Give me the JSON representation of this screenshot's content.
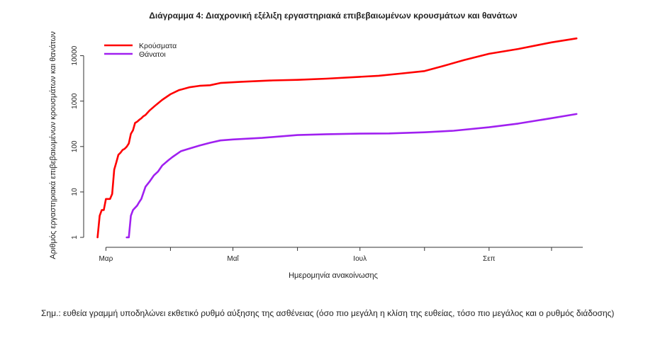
{
  "chart_data": {
    "type": "line",
    "title": "Διάγραμμα 4: Διαχρονική εξέλιξη εργαστηριακά επιβεβαιωμένων κρουσμάτων και θανάτων",
    "xlabel": "Ημερομηνία ανακοίνωσης",
    "ylabel": "Αριθμός εργαστηριακά επιβεβαιωμένων κρουσμάτων και θανάτων",
    "y_scale": "log",
    "ylim": [
      1,
      30000
    ],
    "y_ticks": [
      1,
      10,
      100,
      1000,
      10000
    ],
    "y_tick_labels": [
      "1",
      "10",
      "100",
      "1000",
      "10000"
    ],
    "xlim": [
      "2020-02-20",
      "2020-10-16"
    ],
    "x_ticks": [
      "2020-03-01",
      "2020-05-01",
      "2020-07-01",
      "2020-09-01"
    ],
    "x_tick_labels": [
      "Μαρ",
      "Μαΐ",
      "Ιουλ",
      "Σεπ"
    ],
    "grid": false,
    "legend_position": "top-left",
    "series": [
      {
        "name": "Κρούσματα",
        "color": "#ff0000",
        "points": [
          [
            "2020-02-26",
            1
          ],
          [
            "2020-02-27",
            3
          ],
          [
            "2020-02-28",
            4
          ],
          [
            "2020-02-29",
            4
          ],
          [
            "2020-03-01",
            7
          ],
          [
            "2020-03-03",
            7
          ],
          [
            "2020-03-04",
            9
          ],
          [
            "2020-03-05",
            31
          ],
          [
            "2020-03-06",
            45
          ],
          [
            "2020-03-07",
            66
          ],
          [
            "2020-03-08",
            73
          ],
          [
            "2020-03-09",
            84
          ],
          [
            "2020-03-10",
            89
          ],
          [
            "2020-03-11",
            99
          ],
          [
            "2020-03-12",
            117
          ],
          [
            "2020-03-13",
            190
          ],
          [
            "2020-03-14",
            228
          ],
          [
            "2020-03-15",
            331
          ],
          [
            "2020-03-16",
            352
          ],
          [
            "2020-03-17",
            387
          ],
          [
            "2020-03-18",
            418
          ],
          [
            "2020-03-19",
            464
          ],
          [
            "2020-03-20",
            495
          ],
          [
            "2020-03-22",
            624
          ],
          [
            "2020-03-25",
            821
          ],
          [
            "2020-03-28",
            1061
          ],
          [
            "2020-04-01",
            1415
          ],
          [
            "2020-04-05",
            1735
          ],
          [
            "2020-04-10",
            2011
          ],
          [
            "2020-04-15",
            2170
          ],
          [
            "2020-04-20",
            2235
          ],
          [
            "2020-04-25",
            2506
          ],
          [
            "2020-05-05",
            2663
          ],
          [
            "2020-05-20",
            2850
          ],
          [
            "2020-06-01",
            2937
          ],
          [
            "2020-06-15",
            3121
          ],
          [
            "2020-07-01",
            3432
          ],
          [
            "2020-07-10",
            3622
          ],
          [
            "2020-07-20",
            4007
          ],
          [
            "2020-08-01",
            4587
          ],
          [
            "2020-08-10",
            5942
          ],
          [
            "2020-08-20",
            8000
          ],
          [
            "2020-09-01",
            10998
          ],
          [
            "2020-09-15",
            14041
          ],
          [
            "2020-10-01",
            19613
          ],
          [
            "2020-10-13",
            24000
          ]
        ]
      },
      {
        "name": "Θάνατοι",
        "color": "#a020f0",
        "points": [
          [
            "2020-03-11",
            1
          ],
          [
            "2020-03-12",
            1
          ],
          [
            "2020-03-13",
            3
          ],
          [
            "2020-03-14",
            4
          ],
          [
            "2020-03-16",
            5
          ],
          [
            "2020-03-17",
            6
          ],
          [
            "2020-03-18",
            7
          ],
          [
            "2020-03-20",
            13
          ],
          [
            "2020-03-22",
            17
          ],
          [
            "2020-03-24",
            23
          ],
          [
            "2020-03-26",
            28
          ],
          [
            "2020-03-28",
            38
          ],
          [
            "2020-03-31",
            50
          ],
          [
            "2020-04-02",
            59
          ],
          [
            "2020-04-06",
            79
          ],
          [
            "2020-04-10",
            90
          ],
          [
            "2020-04-15",
            105
          ],
          [
            "2020-04-20",
            121
          ],
          [
            "2020-04-25",
            136
          ],
          [
            "2020-05-01",
            143
          ],
          [
            "2020-05-15",
            155
          ],
          [
            "2020-06-01",
            179
          ],
          [
            "2020-06-15",
            187
          ],
          [
            "2020-07-01",
            192
          ],
          [
            "2020-07-15",
            194
          ],
          [
            "2020-08-01",
            206
          ],
          [
            "2020-08-15",
            223
          ],
          [
            "2020-09-01",
            266
          ],
          [
            "2020-09-15",
            320
          ],
          [
            "2020-10-01",
            420
          ],
          [
            "2020-10-13",
            520
          ]
        ]
      }
    ]
  },
  "note": {
    "text": "Σημ.: ευθεία γραμμή υποδηλώνει εκθετικό ρυθμό αύξησης της ασθένειας (όσο πιο μεγάλη η κλίση της ευθείας, τόσο πιο μεγάλος και ο ρυθμός διάδοσης)"
  }
}
